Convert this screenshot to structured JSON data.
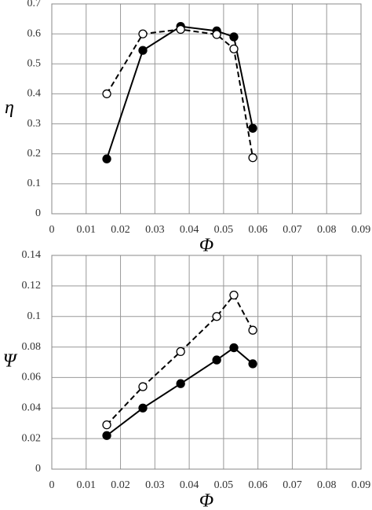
{
  "chart_data": [
    {
      "type": "line",
      "ylabel": "η",
      "xlabel": "Φ",
      "x": [
        0.016,
        0.0265,
        0.0375,
        0.048,
        0.053,
        0.0585
      ],
      "series": [
        {
          "color": "#000000",
          "dash": "solid",
          "marker_fill": "#000000",
          "values": [
            0.183,
            0.545,
            0.625,
            0.61,
            0.59,
            0.285
          ]
        },
        {
          "color": "#000000",
          "dash": "dashed",
          "marker_fill": "#ffffff",
          "values": [
            0.4,
            0.6,
            0.615,
            0.598,
            0.55,
            0.187
          ]
        }
      ],
      "xlim": [
        0,
        0.09
      ],
      "xticks": [
        0,
        0.01,
        0.02,
        0.03,
        0.04,
        0.05,
        0.06,
        0.07,
        0.08,
        0.09
      ],
      "ylim": [
        0,
        0.7
      ],
      "yticks": [
        0,
        0.1,
        0.2,
        0.3,
        0.4,
        0.5,
        0.6,
        0.7
      ],
      "grid": true
    },
    {
      "type": "line",
      "ylabel": "Ψ",
      "xlabel": "Φ",
      "x": [
        0.016,
        0.0265,
        0.0375,
        0.048,
        0.053,
        0.0585
      ],
      "series": [
        {
          "color": "#000000",
          "dash": "solid",
          "marker_fill": "#000000",
          "values": [
            0.022,
            0.04,
            0.056,
            0.0715,
            0.0795,
            0.069
          ]
        },
        {
          "color": "#000000",
          "dash": "dashed",
          "marker_fill": "#ffffff",
          "values": [
            0.029,
            0.054,
            0.077,
            0.1,
            0.114,
            0.091
          ]
        }
      ],
      "xlim": [
        0,
        0.09
      ],
      "xticks": [
        0,
        0.01,
        0.02,
        0.03,
        0.04,
        0.05,
        0.06,
        0.07,
        0.08,
        0.09
      ],
      "ylim": [
        0,
        0.14
      ],
      "yticks": [
        0,
        0.02,
        0.04,
        0.06,
        0.08,
        0.1,
        0.12,
        0.14
      ],
      "grid": true
    }
  ]
}
